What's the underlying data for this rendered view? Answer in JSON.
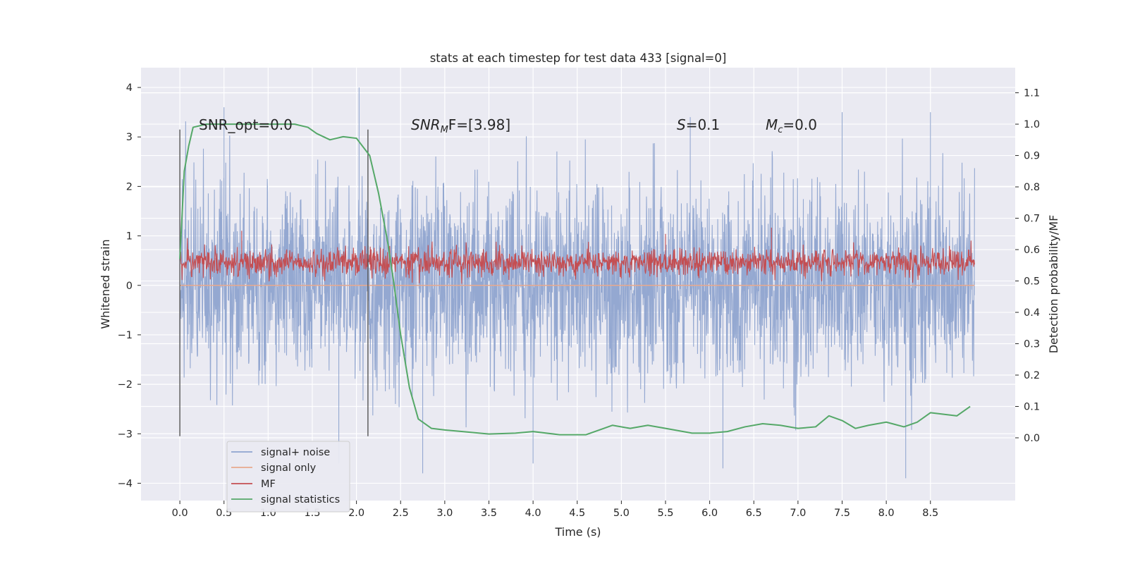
{
  "chart_data": {
    "type": "line",
    "title": "stats at each timestep for test data 433 [signal=0]",
    "xlabel": "Time (s)",
    "ylabel": "Whitened strain",
    "y2label": "Detection probability/MF",
    "xlim": [
      -0.44,
      9.46
    ],
    "ylim": [
      -4.35,
      4.4
    ],
    "y2lim": [
      -0.2,
      1.18
    ],
    "xticks": [
      "0.0",
      "0.5",
      "1.0",
      "1.5",
      "2.0",
      "2.5",
      "3.0",
      "3.5",
      "4.0",
      "4.5",
      "5.0",
      "5.5",
      "6.0",
      "6.5",
      "7.0",
      "7.5",
      "8.0",
      "8.5"
    ],
    "yticks": [
      "4",
      "3",
      "2",
      "1",
      "0",
      "−1",
      "−2",
      "−3",
      "−4"
    ],
    "y2ticks": [
      "1.1",
      "1.0",
      "0.9",
      "0.8",
      "0.7",
      "0.6",
      "0.5",
      "0.4",
      "0.3",
      "0.2",
      "0.1",
      "0.0"
    ],
    "grid": true,
    "legend_position": "bottom-left",
    "colors": {
      "signal_noise": "#8fa4cf",
      "signal_only": "#e8a98e",
      "mf": "#c44e52",
      "signal_statistics": "#55a868",
      "vertical_markers": "#555555",
      "background": "#eaeaf2"
    },
    "annotations": {
      "snr_opt": "SNR_opt=0.0",
      "snr_mf_base": "SNR",
      "snr_mf_sub": "M",
      "snr_mf_rest": "F=[3.98]",
      "s_var": "S",
      "s_rest": "=0.1",
      "mc_var": "M",
      "mc_sub": "c",
      "mc_rest": "=0.0"
    },
    "vertical_markers": [
      0.0,
      2.13
    ],
    "series": [
      {
        "name": "signal+ noise",
        "description_visible": "dense noise band",
        "x_range": [
          0.0,
          9.0
        ],
        "envelope_typical": [
          -2.0,
          2.0
        ],
        "peaks": [
          [
            0.5,
            3.6
          ],
          [
            2.03,
            4.0
          ],
          [
            1.8,
            -3.6
          ],
          [
            2.75,
            -3.8
          ],
          [
            4.0,
            -3.6
          ],
          [
            6.15,
            -3.7
          ],
          [
            8.22,
            -3.9
          ],
          [
            7.5,
            3.5
          ],
          [
            5.78,
            3.4
          ],
          [
            8.5,
            3.5
          ]
        ]
      },
      {
        "name": "signal only",
        "x": [
          0.0,
          9.0
        ],
        "y": [
          0.0,
          0.0
        ]
      },
      {
        "name": "MF",
        "x_range": [
          0.0,
          9.0
        ],
        "axis": "right",
        "band": [
          0.5,
          0.62
        ],
        "spikes": [
          [
            0.7,
            0.66
          ],
          [
            6.7,
            0.67
          ],
          [
            5.5,
            0.65
          ]
        ]
      },
      {
        "name": "signal statistics",
        "axis": "right",
        "x": [
          0.0,
          0.05,
          0.1,
          0.15,
          0.3,
          0.6,
          1.0,
          1.3,
          1.45,
          1.55,
          1.7,
          1.85,
          2.0,
          2.15,
          2.25,
          2.35,
          2.42,
          2.5,
          2.6,
          2.7,
          2.85,
          3.0,
          3.2,
          3.5,
          3.8,
          4.0,
          4.3,
          4.6,
          4.8,
          4.9,
          5.1,
          5.3,
          5.5,
          5.8,
          6.0,
          6.2,
          6.4,
          6.6,
          6.8,
          7.0,
          7.2,
          7.35,
          7.5,
          7.65,
          7.8,
          8.0,
          8.2,
          8.35,
          8.5,
          8.65,
          8.8,
          8.95
        ],
        "y": [
          0.57,
          0.85,
          0.93,
          0.99,
          1.0,
          1.0,
          1.0,
          1.0,
          0.99,
          0.97,
          0.95,
          0.96,
          0.955,
          0.9,
          0.78,
          0.63,
          0.5,
          0.33,
          0.16,
          0.06,
          0.03,
          0.025,
          0.02,
          0.012,
          0.015,
          0.02,
          0.01,
          0.01,
          0.03,
          0.04,
          0.03,
          0.04,
          0.03,
          0.015,
          0.015,
          0.02,
          0.035,
          0.045,
          0.04,
          0.03,
          0.035,
          0.07,
          0.055,
          0.03,
          0.04,
          0.05,
          0.035,
          0.05,
          0.08,
          0.075,
          0.07,
          0.1
        ]
      }
    ]
  }
}
